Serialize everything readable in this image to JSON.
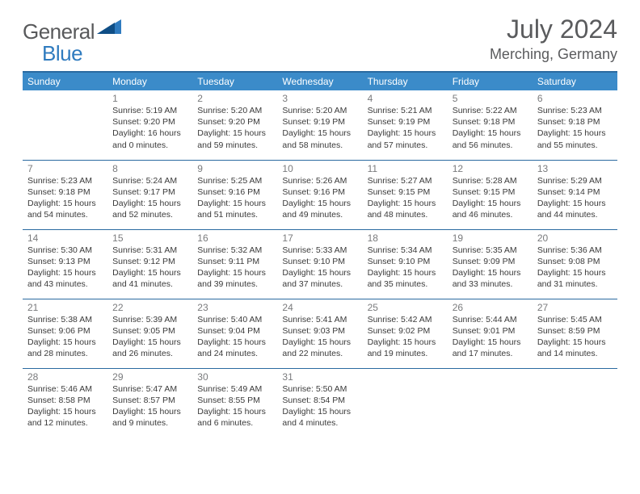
{
  "brand": {
    "general": "General",
    "blue": "Blue"
  },
  "title": "July 2024",
  "location": "Merching, Germany",
  "colors": {
    "header_bg": "#3b8bc9",
    "header_border": "#2a6aa0",
    "text_gray": "#5a5b5d",
    "accent_blue": "#2f7bbf"
  },
  "weekdays": [
    "Sunday",
    "Monday",
    "Tuesday",
    "Wednesday",
    "Thursday",
    "Friday",
    "Saturday"
  ],
  "weeks": [
    [
      null,
      {
        "n": "1",
        "sr": "Sunrise: 5:19 AM",
        "ss": "Sunset: 9:20 PM",
        "d1": "Daylight: 16 hours",
        "d2": "and 0 minutes."
      },
      {
        "n": "2",
        "sr": "Sunrise: 5:20 AM",
        "ss": "Sunset: 9:20 PM",
        "d1": "Daylight: 15 hours",
        "d2": "and 59 minutes."
      },
      {
        "n": "3",
        "sr": "Sunrise: 5:20 AM",
        "ss": "Sunset: 9:19 PM",
        "d1": "Daylight: 15 hours",
        "d2": "and 58 minutes."
      },
      {
        "n": "4",
        "sr": "Sunrise: 5:21 AM",
        "ss": "Sunset: 9:19 PM",
        "d1": "Daylight: 15 hours",
        "d2": "and 57 minutes."
      },
      {
        "n": "5",
        "sr": "Sunrise: 5:22 AM",
        "ss": "Sunset: 9:18 PM",
        "d1": "Daylight: 15 hours",
        "d2": "and 56 minutes."
      },
      {
        "n": "6",
        "sr": "Sunrise: 5:23 AM",
        "ss": "Sunset: 9:18 PM",
        "d1": "Daylight: 15 hours",
        "d2": "and 55 minutes."
      }
    ],
    [
      {
        "n": "7",
        "sr": "Sunrise: 5:23 AM",
        "ss": "Sunset: 9:18 PM",
        "d1": "Daylight: 15 hours",
        "d2": "and 54 minutes."
      },
      {
        "n": "8",
        "sr": "Sunrise: 5:24 AM",
        "ss": "Sunset: 9:17 PM",
        "d1": "Daylight: 15 hours",
        "d2": "and 52 minutes."
      },
      {
        "n": "9",
        "sr": "Sunrise: 5:25 AM",
        "ss": "Sunset: 9:16 PM",
        "d1": "Daylight: 15 hours",
        "d2": "and 51 minutes."
      },
      {
        "n": "10",
        "sr": "Sunrise: 5:26 AM",
        "ss": "Sunset: 9:16 PM",
        "d1": "Daylight: 15 hours",
        "d2": "and 49 minutes."
      },
      {
        "n": "11",
        "sr": "Sunrise: 5:27 AM",
        "ss": "Sunset: 9:15 PM",
        "d1": "Daylight: 15 hours",
        "d2": "and 48 minutes."
      },
      {
        "n": "12",
        "sr": "Sunrise: 5:28 AM",
        "ss": "Sunset: 9:15 PM",
        "d1": "Daylight: 15 hours",
        "d2": "and 46 minutes."
      },
      {
        "n": "13",
        "sr": "Sunrise: 5:29 AM",
        "ss": "Sunset: 9:14 PM",
        "d1": "Daylight: 15 hours",
        "d2": "and 44 minutes."
      }
    ],
    [
      {
        "n": "14",
        "sr": "Sunrise: 5:30 AM",
        "ss": "Sunset: 9:13 PM",
        "d1": "Daylight: 15 hours",
        "d2": "and 43 minutes."
      },
      {
        "n": "15",
        "sr": "Sunrise: 5:31 AM",
        "ss": "Sunset: 9:12 PM",
        "d1": "Daylight: 15 hours",
        "d2": "and 41 minutes."
      },
      {
        "n": "16",
        "sr": "Sunrise: 5:32 AM",
        "ss": "Sunset: 9:11 PM",
        "d1": "Daylight: 15 hours",
        "d2": "and 39 minutes."
      },
      {
        "n": "17",
        "sr": "Sunrise: 5:33 AM",
        "ss": "Sunset: 9:10 PM",
        "d1": "Daylight: 15 hours",
        "d2": "and 37 minutes."
      },
      {
        "n": "18",
        "sr": "Sunrise: 5:34 AM",
        "ss": "Sunset: 9:10 PM",
        "d1": "Daylight: 15 hours",
        "d2": "and 35 minutes."
      },
      {
        "n": "19",
        "sr": "Sunrise: 5:35 AM",
        "ss": "Sunset: 9:09 PM",
        "d1": "Daylight: 15 hours",
        "d2": "and 33 minutes."
      },
      {
        "n": "20",
        "sr": "Sunrise: 5:36 AM",
        "ss": "Sunset: 9:08 PM",
        "d1": "Daylight: 15 hours",
        "d2": "and 31 minutes."
      }
    ],
    [
      {
        "n": "21",
        "sr": "Sunrise: 5:38 AM",
        "ss": "Sunset: 9:06 PM",
        "d1": "Daylight: 15 hours",
        "d2": "and 28 minutes."
      },
      {
        "n": "22",
        "sr": "Sunrise: 5:39 AM",
        "ss": "Sunset: 9:05 PM",
        "d1": "Daylight: 15 hours",
        "d2": "and 26 minutes."
      },
      {
        "n": "23",
        "sr": "Sunrise: 5:40 AM",
        "ss": "Sunset: 9:04 PM",
        "d1": "Daylight: 15 hours",
        "d2": "and 24 minutes."
      },
      {
        "n": "24",
        "sr": "Sunrise: 5:41 AM",
        "ss": "Sunset: 9:03 PM",
        "d1": "Daylight: 15 hours",
        "d2": "and 22 minutes."
      },
      {
        "n": "25",
        "sr": "Sunrise: 5:42 AM",
        "ss": "Sunset: 9:02 PM",
        "d1": "Daylight: 15 hours",
        "d2": "and 19 minutes."
      },
      {
        "n": "26",
        "sr": "Sunrise: 5:44 AM",
        "ss": "Sunset: 9:01 PM",
        "d1": "Daylight: 15 hours",
        "d2": "and 17 minutes."
      },
      {
        "n": "27",
        "sr": "Sunrise: 5:45 AM",
        "ss": "Sunset: 8:59 PM",
        "d1": "Daylight: 15 hours",
        "d2": "and 14 minutes."
      }
    ],
    [
      {
        "n": "28",
        "sr": "Sunrise: 5:46 AM",
        "ss": "Sunset: 8:58 PM",
        "d1": "Daylight: 15 hours",
        "d2": "and 12 minutes."
      },
      {
        "n": "29",
        "sr": "Sunrise: 5:47 AM",
        "ss": "Sunset: 8:57 PM",
        "d1": "Daylight: 15 hours",
        "d2": "and 9 minutes."
      },
      {
        "n": "30",
        "sr": "Sunrise: 5:49 AM",
        "ss": "Sunset: 8:55 PM",
        "d1": "Daylight: 15 hours",
        "d2": "and 6 minutes."
      },
      {
        "n": "31",
        "sr": "Sunrise: 5:50 AM",
        "ss": "Sunset: 8:54 PM",
        "d1": "Daylight: 15 hours",
        "d2": "and 4 minutes."
      },
      null,
      null,
      null
    ]
  ]
}
